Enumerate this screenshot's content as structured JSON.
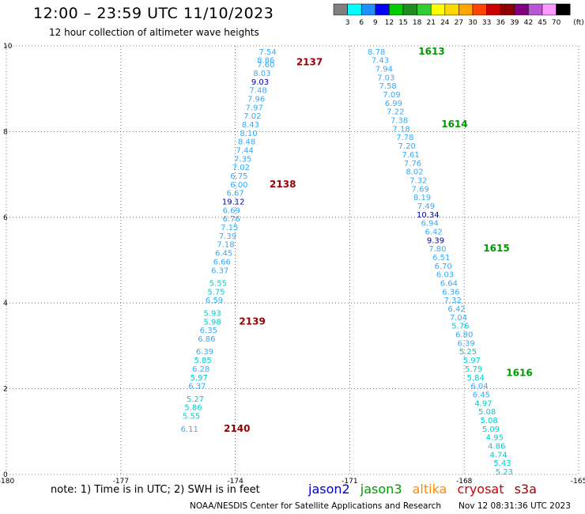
{
  "header": {
    "title": "12:00 – 23:59 UTC 11/10/2023",
    "subtitle": "12 hour collection of altimeter wave heights"
  },
  "colorbar": {
    "ticks": [
      "3",
      "6",
      "9",
      "12",
      "15",
      "18",
      "21",
      "24",
      "27",
      "30",
      "33",
      "36",
      "39",
      "42",
      "45",
      "70"
    ],
    "unit": "(ft)",
    "colors": [
      "#808080",
      "#00ffff",
      "#1e90ff",
      "#0000ff",
      "#00cc00",
      "#228b22",
      "#32cd32",
      "#ffff00",
      "#ffd700",
      "#ffa500",
      "#ff4500",
      "#cc0000",
      "#8b0000",
      "#800080",
      "#ba55d3",
      "#ff99ff",
      "#000000"
    ]
  },
  "footer": {
    "note": "note:  1) Time is in UTC;  2) SWH is in feet",
    "credit": "NOAA/NESDIS Center for Satellite Applications and Research",
    "timestamp": "Nov 12 08:31:36 UTC 2023",
    "satellites": [
      {
        "name": "jason2",
        "color": "#0000cc"
      },
      {
        "name": "jason3",
        "color": "#009900"
      },
      {
        "name": "altika",
        "color": "#ff8c00"
      },
      {
        "name": "cryosat",
        "color": "#cc0000"
      },
      {
        "name": "s3a",
        "color": "#990000"
      }
    ]
  },
  "chart_data": {
    "type": "scatter",
    "title": "12:00 – 23:59 UTC 11/10/2023",
    "xlim": [
      -180,
      -165
    ],
    "ylim": [
      0,
      10
    ],
    "x_ticks": [
      -180,
      -177,
      -174,
      -171,
      -168,
      -165
    ],
    "x_tick_labels": [
      "-180",
      "-177",
      "-174",
      "-171",
      "-168",
      "-165"
    ],
    "y_ticks": [
      0,
      2,
      4,
      6,
      8,
      10
    ],
    "grid": true,
    "colors": {
      "low": "#00cccc",
      "mid": "#33aaff",
      "high": "#000099",
      "jason3": "#009900",
      "s3a": "#990000"
    },
    "tracks": [
      {
        "name": "2137-2140",
        "color_label": "s3a",
        "points": [
          {
            "x": -173.15,
            "y": 9.8,
            "v": "7.54"
          },
          {
            "x": -173.2,
            "y": 9.6,
            "v": "8.86"
          },
          {
            "x": -173.2,
            "y": 9.5,
            "v": "7.60"
          },
          {
            "x": -173.3,
            "y": 9.3,
            "v": "8.03"
          },
          {
            "x": -173.35,
            "y": 9.1,
            "v": "9.03"
          },
          {
            "x": -173.4,
            "y": 8.9,
            "v": "7.48"
          },
          {
            "x": -173.45,
            "y": 8.7,
            "v": "7.96"
          },
          {
            "x": -173.5,
            "y": 8.5,
            "v": "7.97"
          },
          {
            "x": -173.55,
            "y": 8.3,
            "v": "7.02"
          },
          {
            "x": -173.6,
            "y": 8.1,
            "v": "8.43"
          },
          {
            "x": -173.65,
            "y": 7.9,
            "v": "8.10"
          },
          {
            "x": -173.7,
            "y": 7.7,
            "v": "8.48"
          },
          {
            "x": -173.75,
            "y": 7.5,
            "v": "7.44"
          },
          {
            "x": -173.8,
            "y": 7.3,
            "v": "7.35"
          },
          {
            "x": -173.85,
            "y": 7.1,
            "v": "7.02"
          },
          {
            "x": -173.9,
            "y": 6.9,
            "v": "6.75"
          },
          {
            "x": -173.9,
            "y": 6.7,
            "v": "6.00"
          },
          {
            "x": -174.0,
            "y": 6.5,
            "v": "6.67"
          },
          {
            "x": -174.05,
            "y": 6.3,
            "v": "19.12"
          },
          {
            "x": -174.1,
            "y": 6.1,
            "v": "6.69"
          },
          {
            "x": -174.1,
            "y": 5.9,
            "v": "6.76"
          },
          {
            "x": -174.15,
            "y": 5.7,
            "v": "7.15"
          },
          {
            "x": -174.2,
            "y": 5.5,
            "v": "7.39"
          },
          {
            "x": -174.25,
            "y": 5.3,
            "v": "7.18"
          },
          {
            "x": -174.3,
            "y": 5.1,
            "v": "6.45"
          },
          {
            "x": -174.35,
            "y": 4.9,
            "v": "6.66"
          },
          {
            "x": -174.4,
            "y": 4.7,
            "v": "6.37"
          },
          {
            "x": -174.45,
            "y": 4.4,
            "v": "5.55"
          },
          {
            "x": -174.5,
            "y": 4.2,
            "v": "5.75"
          },
          {
            "x": -174.55,
            "y": 4.0,
            "v": "6.59"
          },
          {
            "x": -174.6,
            "y": 3.7,
            "v": "5.93"
          },
          {
            "x": -174.6,
            "y": 3.5,
            "v": "5.98"
          },
          {
            "x": -174.7,
            "y": 3.3,
            "v": "6.35"
          },
          {
            "x": -174.75,
            "y": 3.1,
            "v": "6.86"
          },
          {
            "x": -174.8,
            "y": 2.8,
            "v": "6.39"
          },
          {
            "x": -174.85,
            "y": 2.6,
            "v": "5.85"
          },
          {
            "x": -174.9,
            "y": 2.4,
            "v": "6.28"
          },
          {
            "x": -174.95,
            "y": 2.2,
            "v": "5.97"
          },
          {
            "x": -175.0,
            "y": 2.0,
            "v": "6.37"
          },
          {
            "x": -175.05,
            "y": 1.7,
            "v": "5.27"
          },
          {
            "x": -175.1,
            "y": 1.5,
            "v": "5.86"
          },
          {
            "x": -175.15,
            "y": 1.3,
            "v": "5.55"
          },
          {
            "x": -175.2,
            "y": 1.0,
            "v": "6.11"
          }
        ]
      },
      {
        "name": "1613-1616",
        "color_label": "jason3",
        "points": [
          {
            "x": -170.3,
            "y": 9.8,
            "v": "8.78"
          },
          {
            "x": -170.2,
            "y": 9.6,
            "v": "7.43"
          },
          {
            "x": -170.1,
            "y": 9.4,
            "v": "7.94"
          },
          {
            "x": -170.05,
            "y": 9.2,
            "v": "7.03"
          },
          {
            "x": -170.0,
            "y": 9.0,
            "v": "7.58"
          },
          {
            "x": -169.9,
            "y": 8.8,
            "v": "7.09"
          },
          {
            "x": -169.85,
            "y": 8.6,
            "v": "6.99"
          },
          {
            "x": -169.8,
            "y": 8.4,
            "v": "7.22"
          },
          {
            "x": -169.7,
            "y": 8.2,
            "v": "7.38"
          },
          {
            "x": -169.65,
            "y": 8.0,
            "v": "7.18"
          },
          {
            "x": -169.55,
            "y": 7.8,
            "v": "7.78"
          },
          {
            "x": -169.5,
            "y": 7.6,
            "v": "7.20"
          },
          {
            "x": -169.4,
            "y": 7.4,
            "v": "7.61"
          },
          {
            "x": -169.35,
            "y": 7.2,
            "v": "7.76"
          },
          {
            "x": -169.3,
            "y": 7.0,
            "v": "8.02"
          },
          {
            "x": -169.2,
            "y": 6.8,
            "v": "7.32"
          },
          {
            "x": -169.15,
            "y": 6.6,
            "v": "7.69"
          },
          {
            "x": -169.1,
            "y": 6.4,
            "v": "8.19"
          },
          {
            "x": -169.0,
            "y": 6.2,
            "v": "7.49"
          },
          {
            "x": -168.95,
            "y": 6.0,
            "v": "10.34"
          },
          {
            "x": -168.9,
            "y": 5.8,
            "v": "6.94"
          },
          {
            "x": -168.8,
            "y": 5.6,
            "v": "6.42"
          },
          {
            "x": -168.75,
            "y": 5.4,
            "v": "9.39"
          },
          {
            "x": -168.7,
            "y": 5.2,
            "v": "7.80"
          },
          {
            "x": -168.6,
            "y": 5.0,
            "v": "6.51"
          },
          {
            "x": -168.55,
            "y": 4.8,
            "v": "6.70"
          },
          {
            "x": -168.5,
            "y": 4.6,
            "v": "6.03"
          },
          {
            "x": -168.4,
            "y": 4.4,
            "v": "6.64"
          },
          {
            "x": -168.35,
            "y": 4.2,
            "v": "6.36"
          },
          {
            "x": -168.3,
            "y": 4.0,
            "v": "7.32"
          },
          {
            "x": -168.2,
            "y": 3.8,
            "v": "6.42"
          },
          {
            "x": -168.15,
            "y": 3.6,
            "v": "7.04"
          },
          {
            "x": -168.1,
            "y": 3.4,
            "v": "5.76"
          },
          {
            "x": -168.0,
            "y": 3.2,
            "v": "6.80"
          },
          {
            "x": -167.95,
            "y": 3.0,
            "v": "6.39"
          },
          {
            "x": -167.9,
            "y": 2.8,
            "v": "5.25"
          },
          {
            "x": -167.8,
            "y": 2.6,
            "v": "5.97"
          },
          {
            "x": -167.75,
            "y": 2.4,
            "v": "5.79"
          },
          {
            "x": -167.7,
            "y": 2.2,
            "v": "5.84"
          },
          {
            "x": -167.6,
            "y": 2.0,
            "v": "6.04"
          },
          {
            "x": -167.55,
            "y": 1.8,
            "v": "6.45"
          },
          {
            "x": -167.5,
            "y": 1.6,
            "v": "4.97"
          },
          {
            "x": -167.4,
            "y": 1.4,
            "v": "5.08"
          },
          {
            "x": -167.35,
            "y": 1.2,
            "v": "5.08"
          },
          {
            "x": -167.3,
            "y": 1.0,
            "v": "5.09"
          },
          {
            "x": -167.2,
            "y": 0.8,
            "v": "4.95"
          },
          {
            "x": -167.15,
            "y": 0.6,
            "v": "4.86"
          },
          {
            "x": -167.1,
            "y": 0.4,
            "v": "4.74"
          },
          {
            "x": -167.0,
            "y": 0.2,
            "v": "5.43"
          },
          {
            "x": -166.95,
            "y": 0.0,
            "v": "5.23"
          }
        ]
      }
    ],
    "annotations": [
      {
        "text": "2137",
        "x": -172.4,
        "y": 9.55,
        "color": "s3a"
      },
      {
        "text": "2138",
        "x": -173.1,
        "y": 6.7,
        "color": "s3a"
      },
      {
        "text": "2139",
        "x": -173.9,
        "y": 3.5,
        "color": "s3a"
      },
      {
        "text": "2140",
        "x": -174.3,
        "y": 1.0,
        "color": "s3a"
      },
      {
        "text": "1613",
        "x": -169.2,
        "y": 9.8,
        "color": "jason3"
      },
      {
        "text": "1614",
        "x": -168.6,
        "y": 8.1,
        "color": "jason3"
      },
      {
        "text": "1615",
        "x": -167.5,
        "y": 5.2,
        "color": "jason3"
      },
      {
        "text": "1616",
        "x": -166.9,
        "y": 2.3,
        "color": "jason3"
      }
    ]
  }
}
